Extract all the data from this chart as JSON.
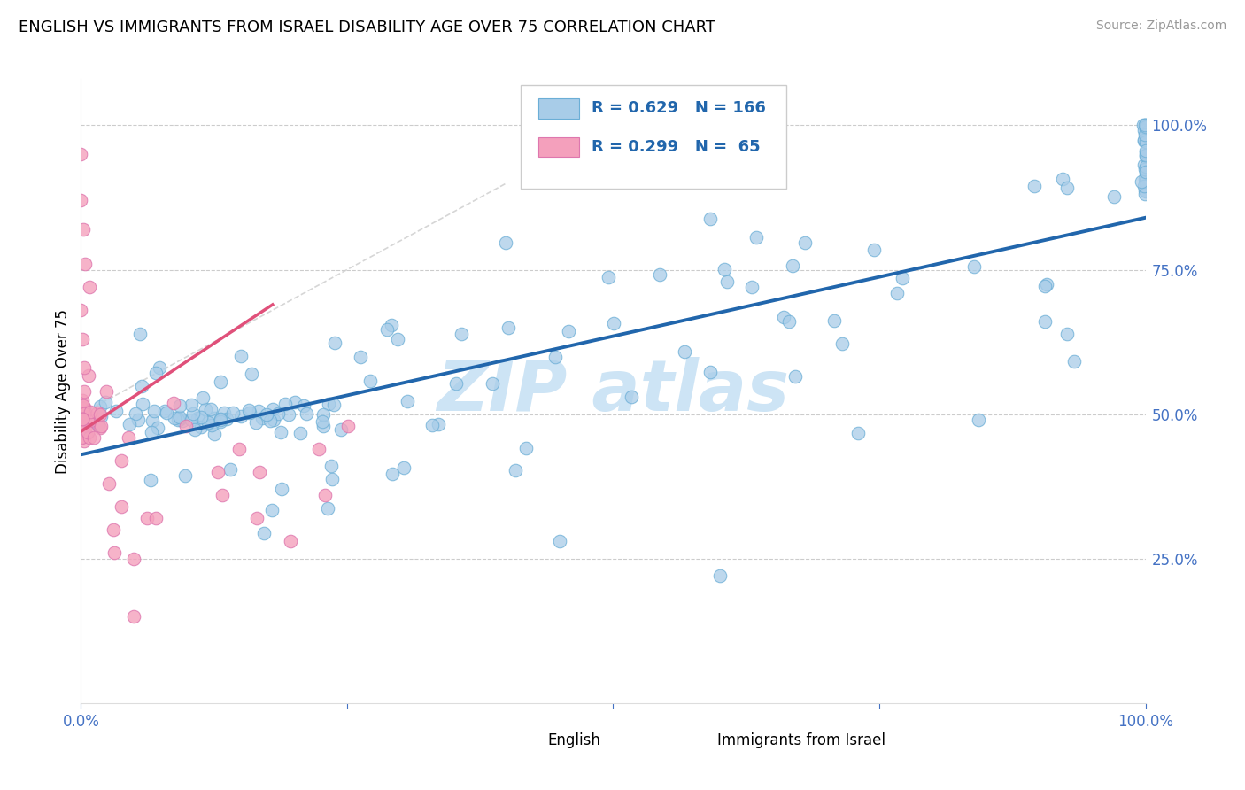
{
  "title": "ENGLISH VS IMMIGRANTS FROM ISRAEL DISABILITY AGE OVER 75 CORRELATION CHART",
  "source": "Source: ZipAtlas.com",
  "ylabel": "Disability Age Over 75",
  "blue_R": "0.629",
  "blue_N": "166",
  "pink_R": "0.299",
  "pink_N": "65",
  "blue_color": "#a8cce8",
  "pink_color": "#f4a0bc",
  "blue_line_color": "#2166ac",
  "pink_line_color": "#e0507a",
  "blue_edge_color": "#6baed6",
  "pink_edge_color": "#de77ae",
  "legend_label_blue": "English",
  "legend_label_pink": "Immigrants from Israel",
  "watermark_text": "ZIP atlas",
  "watermark_color": "#cde4f5",
  "title_fontsize": 13,
  "source_fontsize": 10,
  "tick_fontsize": 12,
  "legend_fontsize": 13
}
